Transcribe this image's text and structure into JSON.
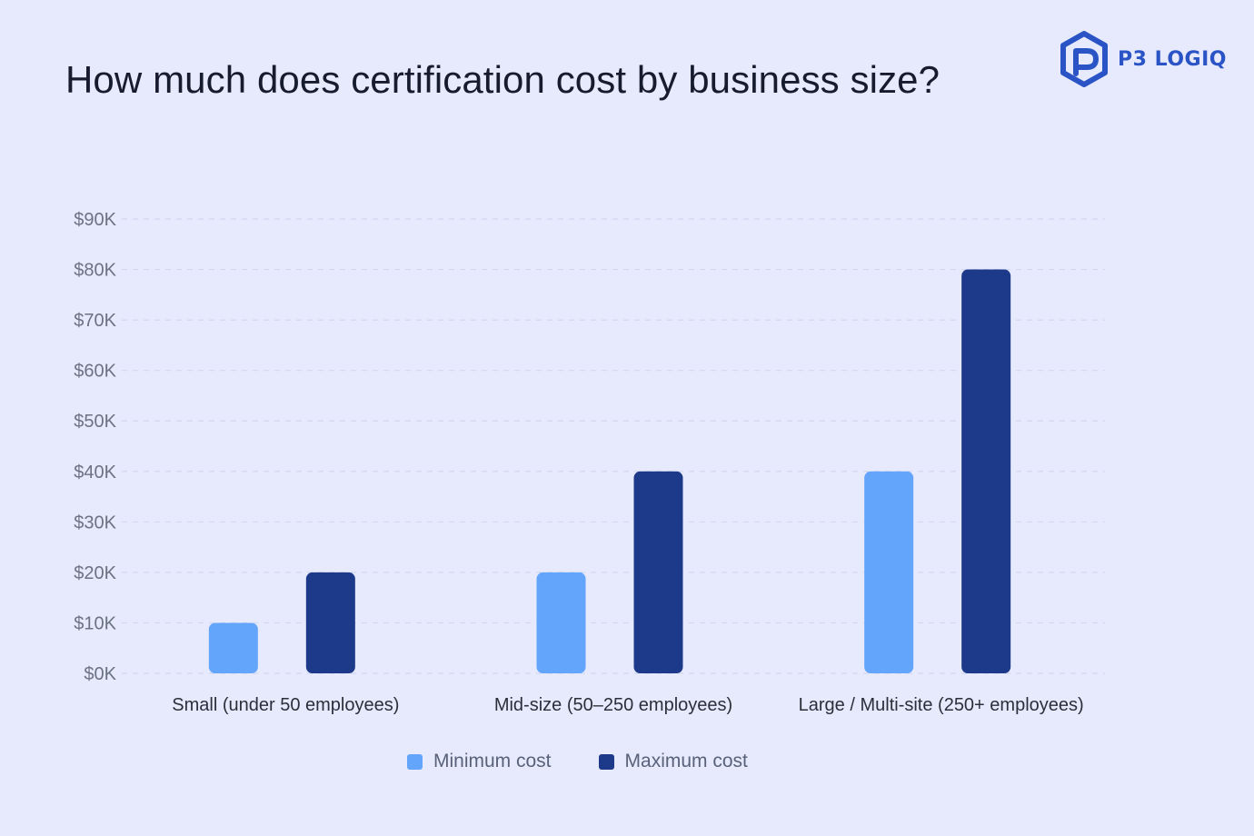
{
  "brand": {
    "name": "P3 LOGIQ",
    "logo_icon": "p-hexagon-logo-icon",
    "color": "#2a54c6"
  },
  "colors": {
    "background": "#e6eafc",
    "min_series": "#62a5fb",
    "max_series": "#1d3989",
    "grid": "#d3d8ee",
    "tick_text": "#6b7280",
    "category_text": "#2b2f3a"
  },
  "chart_data": {
    "type": "bar",
    "title": "How much does certification cost by business size?",
    "xlabel": "",
    "ylabel": "",
    "categories": [
      "Small (under 50 employees)",
      "Mid-size (50–250 employees)",
      "Large / Multi-site (250+ employees)"
    ],
    "series": [
      {
        "name": "Minimum cost",
        "values": [
          10000,
          20000,
          40000
        ],
        "color": "#62a5fb"
      },
      {
        "name": "Maximum cost",
        "values": [
          20000,
          40000,
          80000
        ],
        "color": "#1d3989"
      }
    ],
    "ylim": [
      0,
      90000
    ],
    "yticks": [
      0,
      10000,
      20000,
      30000,
      40000,
      50000,
      60000,
      70000,
      80000,
      90000
    ],
    "ytick_labels": [
      "$0K",
      "$10K",
      "$20K",
      "$30K",
      "$40K",
      "$50K",
      "$60K",
      "$70K",
      "$80K",
      "$90K"
    ],
    "grid": true,
    "grid_style": "dashed",
    "legend_position": "bottom-center"
  }
}
